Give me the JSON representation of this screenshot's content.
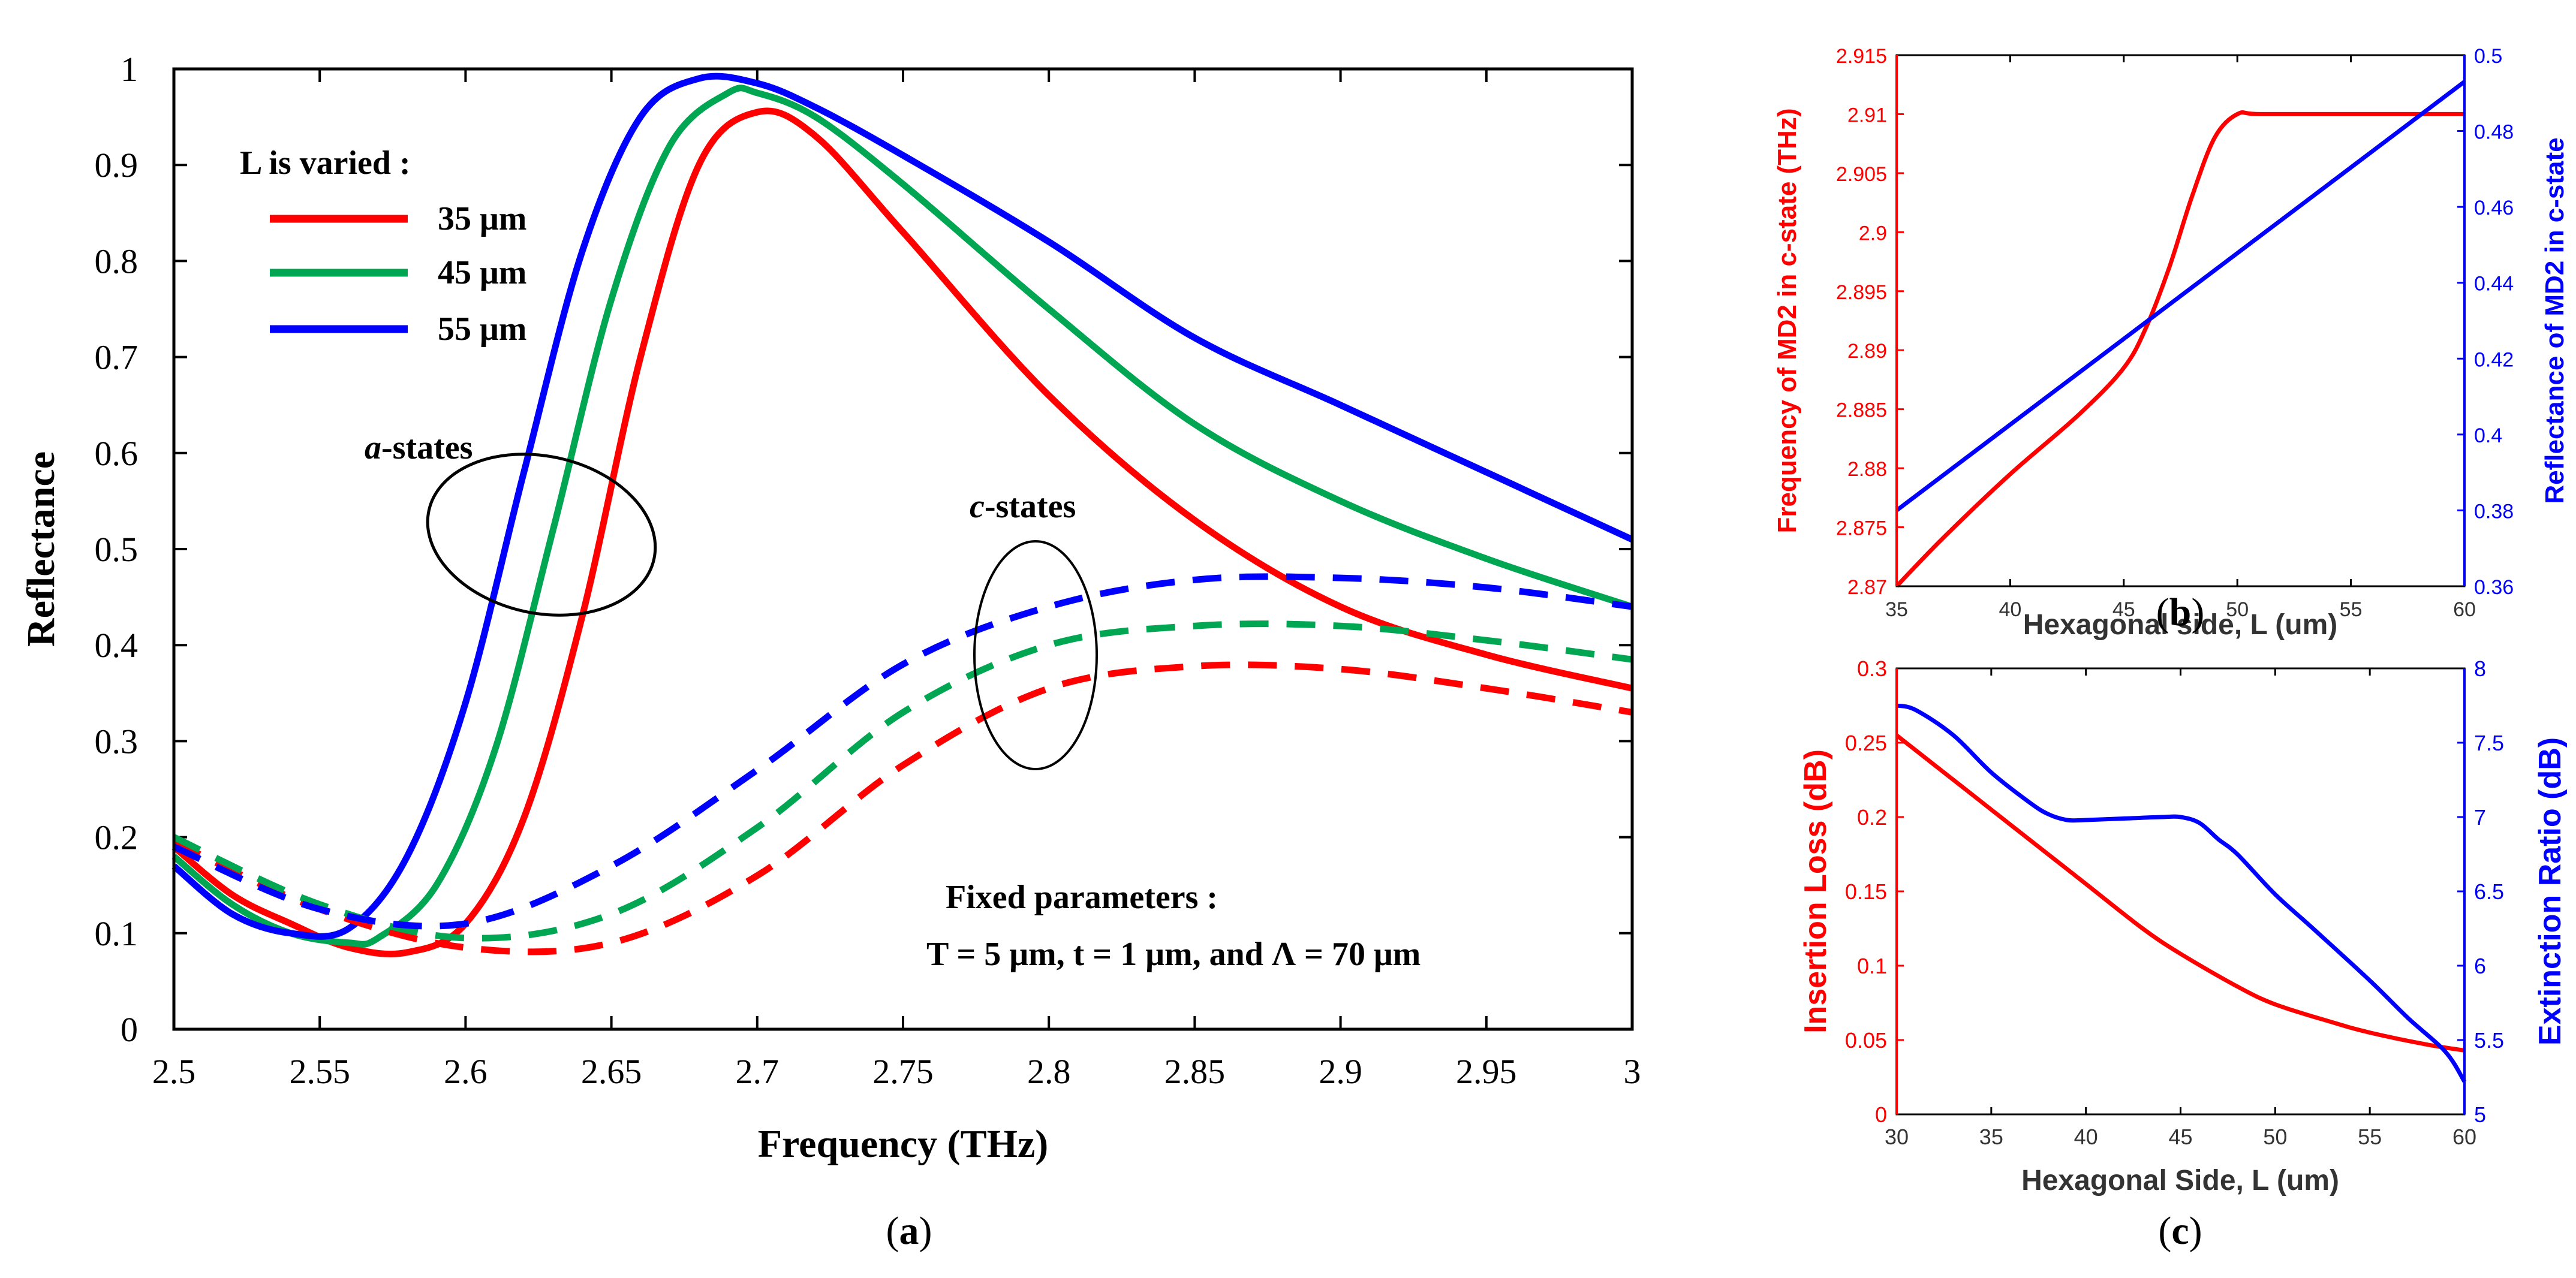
{
  "colors": {
    "red": "#ff0000",
    "green": "#00a651",
    "blue": "#0000ff",
    "black": "#000000"
  },
  "chart_data": [
    {
      "panel": "(a)",
      "panel_label": {
        "open": "(",
        "letter": "a",
        "close": ")"
      },
      "type": "line",
      "title": "",
      "xlabel": "Frequency (THz)",
      "ylabel": "Reflectance",
      "xlim": [
        2.5,
        3.0
      ],
      "ylim": [
        0,
        1.0
      ],
      "xticks": [
        2.5,
        2.55,
        2.6,
        2.65,
        2.7,
        2.75,
        2.8,
        2.85,
        2.9,
        2.95,
        3.0
      ],
      "xtick_labels": [
        "2.5",
        "2.55",
        "2.6",
        "2.65",
        "2.7",
        "2.75",
        "2.8",
        "2.85",
        "2.9",
        "2.95",
        "3"
      ],
      "yticks": [
        0,
        0.1,
        0.2,
        0.3,
        0.4,
        0.5,
        0.6,
        0.7,
        0.8,
        0.9,
        1.0
      ],
      "ytick_labels": [
        "0",
        "0.1",
        "0.2",
        "0.3",
        "0.4",
        "0.5",
        "0.6",
        "0.7",
        "0.8",
        "0.9",
        "1"
      ],
      "legend": {
        "title": "L is varied :",
        "entries": [
          {
            "label": "35 μm",
            "color": "#ff0000"
          },
          {
            "label": "45 μm",
            "color": "#00a651"
          },
          {
            "label": "55 μm",
            "color": "#0000ff"
          }
        ]
      },
      "annotations": {
        "a_states": {
          "italic": "a",
          "rest": "-states"
        },
        "c_states": {
          "italic": "c",
          "rest": "-states"
        },
        "fixed_title": "Fixed parameters :",
        "fixed_values": "T = 5 μm, t = 1 μm, and Λ = 70 μm"
      },
      "series": [
        {
          "name": "35 μm a-state",
          "color": "#ff0000",
          "style": "solid",
          "x": [
            2.5,
            2.52,
            2.54,
            2.56,
            2.58,
            2.6,
            2.62,
            2.64,
            2.66,
            2.68,
            2.7,
            2.72,
            2.75,
            2.8,
            2.85,
            2.9,
            2.95,
            3.0
          ],
          "y": [
            0.19,
            0.14,
            0.11,
            0.085,
            0.08,
            0.11,
            0.22,
            0.43,
            0.7,
            0.9,
            0.955,
            0.93,
            0.83,
            0.66,
            0.53,
            0.44,
            0.39,
            0.355
          ]
        },
        {
          "name": "45 μm a-state",
          "color": "#00a651",
          "style": "solid",
          "x": [
            2.5,
            2.52,
            2.54,
            2.56,
            2.57,
            2.59,
            2.61,
            2.63,
            2.65,
            2.67,
            2.69,
            2.7,
            2.72,
            2.75,
            2.8,
            2.85,
            2.9,
            2.95,
            3.0
          ],
          "y": [
            0.18,
            0.13,
            0.1,
            0.09,
            0.095,
            0.15,
            0.29,
            0.52,
            0.76,
            0.92,
            0.975,
            0.975,
            0.95,
            0.88,
            0.75,
            0.63,
            0.55,
            0.49,
            0.44
          ]
        },
        {
          "name": "55 μm a-state",
          "color": "#0000ff",
          "style": "solid",
          "x": [
            2.5,
            2.52,
            2.54,
            2.56,
            2.58,
            2.6,
            2.62,
            2.64,
            2.66,
            2.68,
            2.7,
            2.72,
            2.75,
            2.8,
            2.85,
            2.9,
            2.95,
            3.0
          ],
          "y": [
            0.17,
            0.12,
            0.1,
            0.105,
            0.18,
            0.34,
            0.58,
            0.81,
            0.95,
            0.99,
            0.985,
            0.96,
            0.91,
            0.82,
            0.72,
            0.65,
            0.58,
            0.51
          ]
        },
        {
          "name": "35 μm c-state",
          "color": "#ff0000",
          "style": "dashed",
          "x": [
            2.5,
            2.55,
            2.6,
            2.65,
            2.7,
            2.75,
            2.8,
            2.85,
            2.9,
            2.95,
            3.0
          ],
          "y": [
            0.195,
            0.125,
            0.085,
            0.09,
            0.16,
            0.275,
            0.355,
            0.378,
            0.375,
            0.355,
            0.33
          ]
        },
        {
          "name": "45 μm c-state",
          "color": "#00a651",
          "style": "dashed",
          "x": [
            2.5,
            2.55,
            2.6,
            2.65,
            2.7,
            2.75,
            2.8,
            2.85,
            2.9,
            2.95,
            3.0
          ],
          "y": [
            0.2,
            0.13,
            0.095,
            0.12,
            0.21,
            0.33,
            0.4,
            0.42,
            0.42,
            0.405,
            0.385
          ]
        },
        {
          "name": "55 μm c-state",
          "color": "#0000ff",
          "style": "dashed",
          "x": [
            2.5,
            2.55,
            2.6,
            2.65,
            2.7,
            2.75,
            2.8,
            2.85,
            2.9,
            2.95,
            3.0
          ],
          "y": [
            0.19,
            0.125,
            0.11,
            0.17,
            0.27,
            0.38,
            0.44,
            0.468,
            0.47,
            0.46,
            0.44
          ]
        }
      ]
    },
    {
      "panel": "(b)",
      "panel_label": {
        "open": "(",
        "letter": "b",
        "close": ")"
      },
      "type": "line",
      "xlabel": "Hexagonal side, L (um)",
      "ylabel_left": "Frequency of MD2 in c-state (THz)",
      "ylabel_right": "Reflectance of MD2 in c-state",
      "xlim": [
        35,
        60
      ],
      "ylim_left": [
        2.87,
        2.915
      ],
      "ylim_right": [
        0.36,
        0.5
      ],
      "xticks": [
        35,
        40,
        45,
        50,
        55,
        60
      ],
      "xtick_labels": [
        "35",
        "40",
        "45",
        "50",
        "55",
        "60"
      ],
      "yticks_left": [
        2.87,
        2.875,
        2.88,
        2.885,
        2.89,
        2.895,
        2.9,
        2.905,
        2.91,
        2.915
      ],
      "ytick_labels_left": [
        "2.87",
        "2.875",
        "2.88",
        "2.885",
        "2.89",
        "2.895",
        "2.9",
        "2.905",
        "2.91",
        "2.915"
      ],
      "yticks_right": [
        0.36,
        0.38,
        0.4,
        0.42,
        0.44,
        0.46,
        0.48,
        0.5
      ],
      "ytick_labels_right": [
        "0.36",
        "0.38",
        "0.4",
        "0.42",
        "0.44",
        "0.46",
        "0.48",
        "0.5"
      ],
      "series": [
        {
          "name": "Frequency of MD2 in c-state",
          "axis": "left",
          "color": "#ff0000",
          "x": [
            35,
            37,
            40,
            43,
            45,
            46,
            47,
            48,
            49,
            50,
            51,
            55,
            60
          ],
          "y": [
            2.87,
            2.874,
            2.8795,
            2.8845,
            2.8885,
            2.892,
            2.897,
            2.903,
            2.908,
            2.91,
            2.91,
            2.91,
            2.91
          ]
        },
        {
          "name": "Reflectance of MD2 in c-state",
          "axis": "right",
          "color": "#0000ff",
          "x": [
            35,
            60
          ],
          "y": [
            0.38,
            0.493
          ]
        }
      ]
    },
    {
      "panel": "(c)",
      "panel_label": {
        "open": "(",
        "letter": "c",
        "close": ")"
      },
      "type": "line",
      "xlabel": "Hexagonal Side, L (um)",
      "ylabel_left": "Insertion Loss (dB)",
      "ylabel_right": "Extinction Ratio (dB)",
      "xlim": [
        30,
        60
      ],
      "ylim_left": [
        0,
        0.3
      ],
      "ylim_right": [
        5,
        8
      ],
      "xticks": [
        30,
        35,
        40,
        45,
        50,
        55,
        60
      ],
      "xtick_labels": [
        "30",
        "35",
        "40",
        "45",
        "50",
        "55",
        "60"
      ],
      "yticks_left": [
        0,
        0.05,
        0.1,
        0.15,
        0.2,
        0.25,
        0.3
      ],
      "ytick_labels_left": [
        "0",
        "0.05",
        "0.1",
        "0.15",
        "0.2",
        "0.25",
        "0.3"
      ],
      "yticks_right": [
        5,
        5.5,
        6,
        6.5,
        7,
        7.5,
        8
      ],
      "ytick_labels_right": [
        "5",
        "5.5",
        "6",
        "6.5",
        "7",
        "7.5",
        "8"
      ],
      "series": [
        {
          "name": "Insertion Loss",
          "axis": "left",
          "color": "#ff0000",
          "x": [
            30,
            32,
            35,
            38,
            40,
            43,
            45,
            48,
            50,
            53,
            55,
            58,
            60
          ],
          "y": [
            0.255,
            0.235,
            0.205,
            0.175,
            0.155,
            0.125,
            0.108,
            0.086,
            0.074,
            0.062,
            0.055,
            0.047,
            0.043
          ]
        },
        {
          "name": "Extinction Ratio",
          "axis": "right",
          "color": "#0000ff",
          "x": [
            30,
            31,
            33,
            35,
            37,
            38,
            39,
            40,
            42,
            44,
            45,
            46,
            47,
            48,
            50,
            52,
            55,
            57,
            59,
            60
          ],
          "y": [
            7.75,
            7.72,
            7.55,
            7.3,
            7.1,
            7.02,
            6.98,
            6.98,
            6.99,
            7.0,
            7.0,
            6.96,
            6.85,
            6.75,
            6.48,
            6.25,
            5.9,
            5.65,
            5.42,
            5.22
          ]
        }
      ]
    }
  ]
}
